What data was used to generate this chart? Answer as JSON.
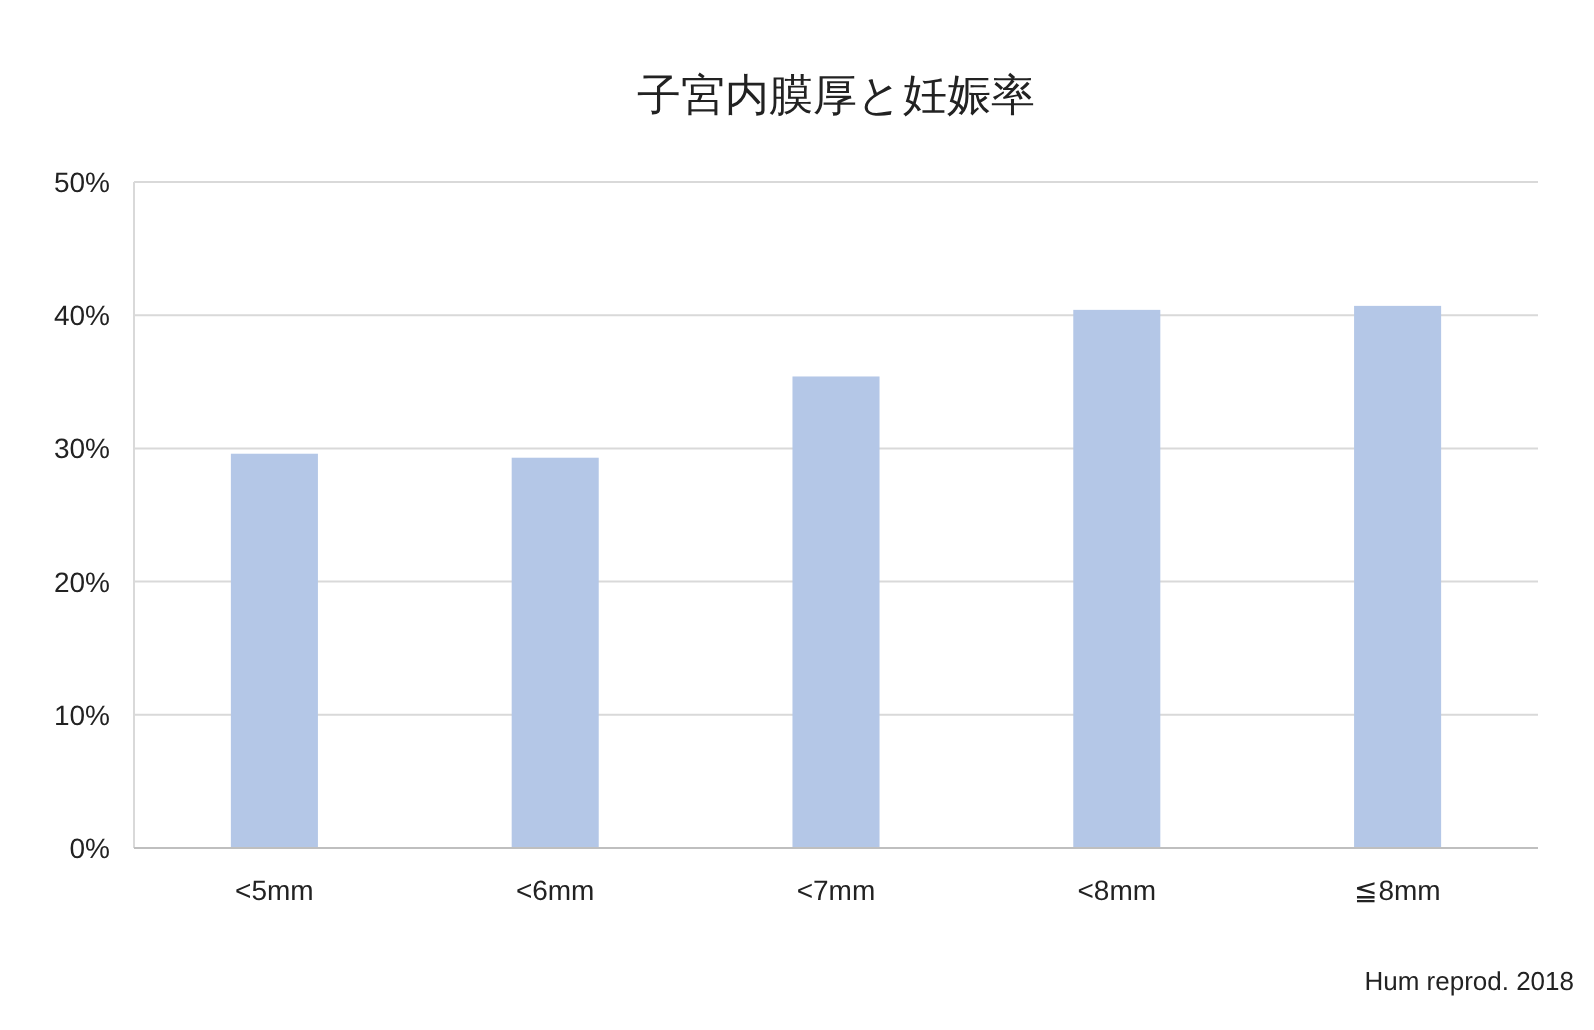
{
  "chart_data": {
    "type": "bar",
    "title": "子宮内膜厚と妊娠率",
    "categories": [
      "<5mm",
      "<6mm",
      "<7mm",
      "<8mm",
      "≦8mm"
    ],
    "values": [
      29.6,
      29.3,
      35.4,
      40.4,
      40.7
    ],
    "color": "#b4c7e7",
    "ylim": [
      0,
      50
    ],
    "yticks": [
      {
        "value": 0,
        "label": "0%"
      },
      {
        "value": 10,
        "label": "10%"
      },
      {
        "value": 20,
        "label": "20%"
      },
      {
        "value": 30,
        "label": "30%"
      },
      {
        "value": 40,
        "label": "40%"
      },
      {
        "value": 50,
        "label": "50%"
      }
    ],
    "grid": "y",
    "annotations": [
      "Hum reprod. 2018"
    ]
  }
}
